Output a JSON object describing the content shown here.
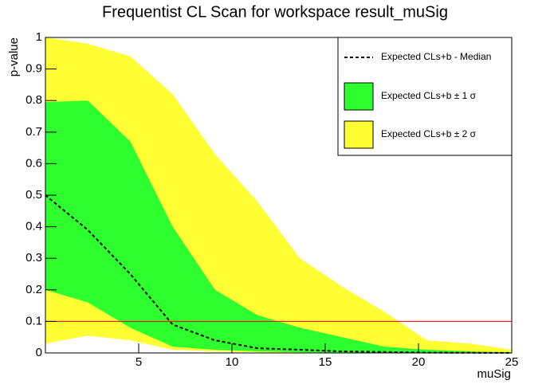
{
  "chart_data": {
    "type": "band-scan",
    "title": "Frequentist CL Scan for workspace result_muSig",
    "x_label": "muSig",
    "y_label": "p-value",
    "x": [
      0,
      2.27,
      4.55,
      6.82,
      9.09,
      11.36,
      13.64,
      15.91,
      18.18,
      20.45,
      22.73,
      25
    ],
    "bands": [
      {
        "name": "Expected CLs+b ± 2 σ",
        "color": "#ffff33",
        "upper": [
          1.0,
          0.98,
          0.94,
          0.82,
          0.63,
          0.48,
          0.3,
          0.21,
          0.13,
          0.04,
          0.03,
          0.01
        ],
        "lower": [
          0.03,
          0.055,
          0.04,
          0.01,
          0.005,
          0.002,
          0.001,
          0,
          0,
          0,
          0,
          0
        ]
      },
      {
        "name": "Expected CLs+b ± 1 σ",
        "color": "#2eff2e",
        "upper": [
          0.795,
          0.8,
          0.67,
          0.4,
          0.2,
          0.12,
          0.08,
          0.05,
          0.02,
          0.01,
          0.005,
          0.002
        ],
        "lower": [
          0.2,
          0.16,
          0.08,
          0.02,
          0.01,
          0.005,
          0.002,
          0.001,
          0,
          0,
          0,
          0
        ]
      }
    ],
    "series": [
      {
        "name": "Expected CLs+b - Median",
        "color": "#000000",
        "values": [
          0.5,
          0.39,
          0.25,
          0.09,
          0.04,
          0.015,
          0.01,
          0.005,
          0.003,
          0.001,
          0.0005,
          0.0002
        ]
      }
    ],
    "threshold": 0.1,
    "threshold_color": "#ff0000",
    "xlim": [
      0,
      25
    ],
    "xticks": [
      5,
      10,
      15,
      20,
      25
    ],
    "ylim": [
      0,
      1
    ],
    "yticks": [
      0,
      0.1,
      0.2,
      0.3,
      0.4,
      0.5,
      0.6,
      0.7,
      0.8,
      0.9,
      1
    ],
    "legend": "top-right"
  }
}
